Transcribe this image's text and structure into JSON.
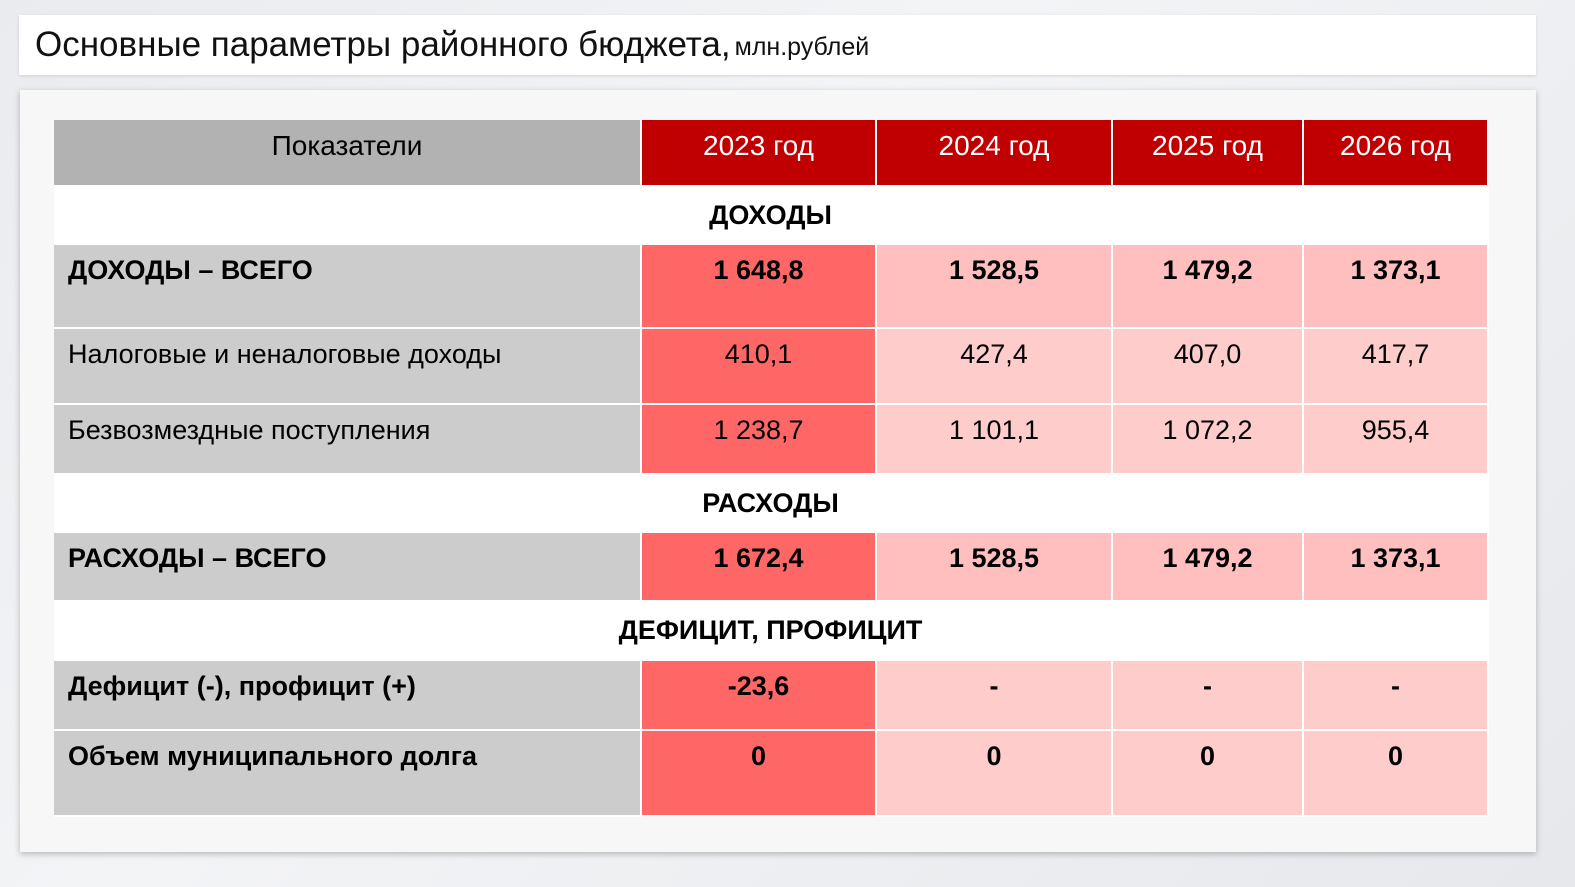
{
  "title": {
    "main": "Основные параметры районного бюджета,",
    "unit": "млн.рублей"
  },
  "table": {
    "header": {
      "indicator": "Показатели",
      "years": [
        "2023 год",
        "2024 год",
        "2025 год",
        "2026 год"
      ]
    },
    "sections": {
      "income": "ДОХОДЫ",
      "expenses": "РАСХОДЫ",
      "balance": "ДЕФИЦИТ,  ПРОФИЦИТ"
    },
    "rows": [
      {
        "label": "ДОХОДЫ – ВСЕГО",
        "values": [
          "1 648,8",
          "1 528,5",
          "1 479,2",
          "1 373,1"
        ]
      },
      {
        "label": "Налоговые и неналоговые доходы",
        "values": [
          "410,1",
          "427,4",
          "407,0",
          "417,7"
        ]
      },
      {
        "label": "Безвозмездные поступления",
        "values": [
          "1 238,7",
          "1 101,1",
          "1 072,2",
          "955,4"
        ]
      },
      {
        "label": "РАСХОДЫ – ВСЕГО",
        "values": [
          "1 672,4",
          "1 528,5",
          "1 479,2",
          "1 373,1"
        ]
      },
      {
        "label": "Дефицит (-), профицит (+)",
        "values": [
          "-23,6",
          "-",
          "-",
          "-"
        ]
      },
      {
        "label": "Объем муниципального долга",
        "values": [
          "0",
          "0",
          "0",
          "0"
        ]
      }
    ]
  },
  "colors": {
    "header_year_bg": "#c00000",
    "header_label_bg": "#b2b2b2",
    "label_bg": "#cccccc",
    "col_2023_bg": "#ff6666",
    "col_2024_bg": "#ffbfbf",
    "col_2025_bg": "#ffbfbf",
    "col_2026_bg": "#ffbfbf"
  }
}
